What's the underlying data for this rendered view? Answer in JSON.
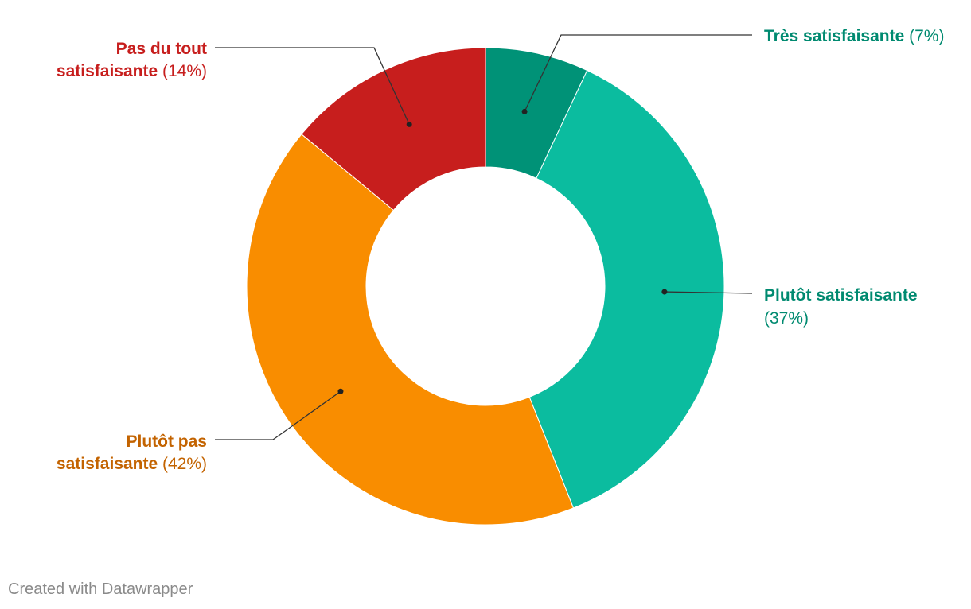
{
  "chart_data": {
    "type": "pie",
    "title": "",
    "donut": true,
    "slices": [
      {
        "name": "Très satisfaisante",
        "value": 7,
        "label_pct": "(7%)",
        "color": "#009277",
        "text_color": "#008a70"
      },
      {
        "name": "Plutôt satisfaisante",
        "value": 37,
        "label_pct": "(37%)",
        "color": "#0bbc9f",
        "text_color": "#008a70"
      },
      {
        "name": "Plutôt pas satisfaisante",
        "value": 42,
        "label_pct": "(42%)",
        "color": "#f98d00",
        "text_color": "#c36300"
      },
      {
        "name": "Pas du tout satisfaisante",
        "value": 14,
        "label_pct": "(14%)",
        "color": "#c71e1d",
        "text_color": "#c71e1d"
      }
    ]
  },
  "footer": {
    "credit": "Created with Datawrapper"
  }
}
